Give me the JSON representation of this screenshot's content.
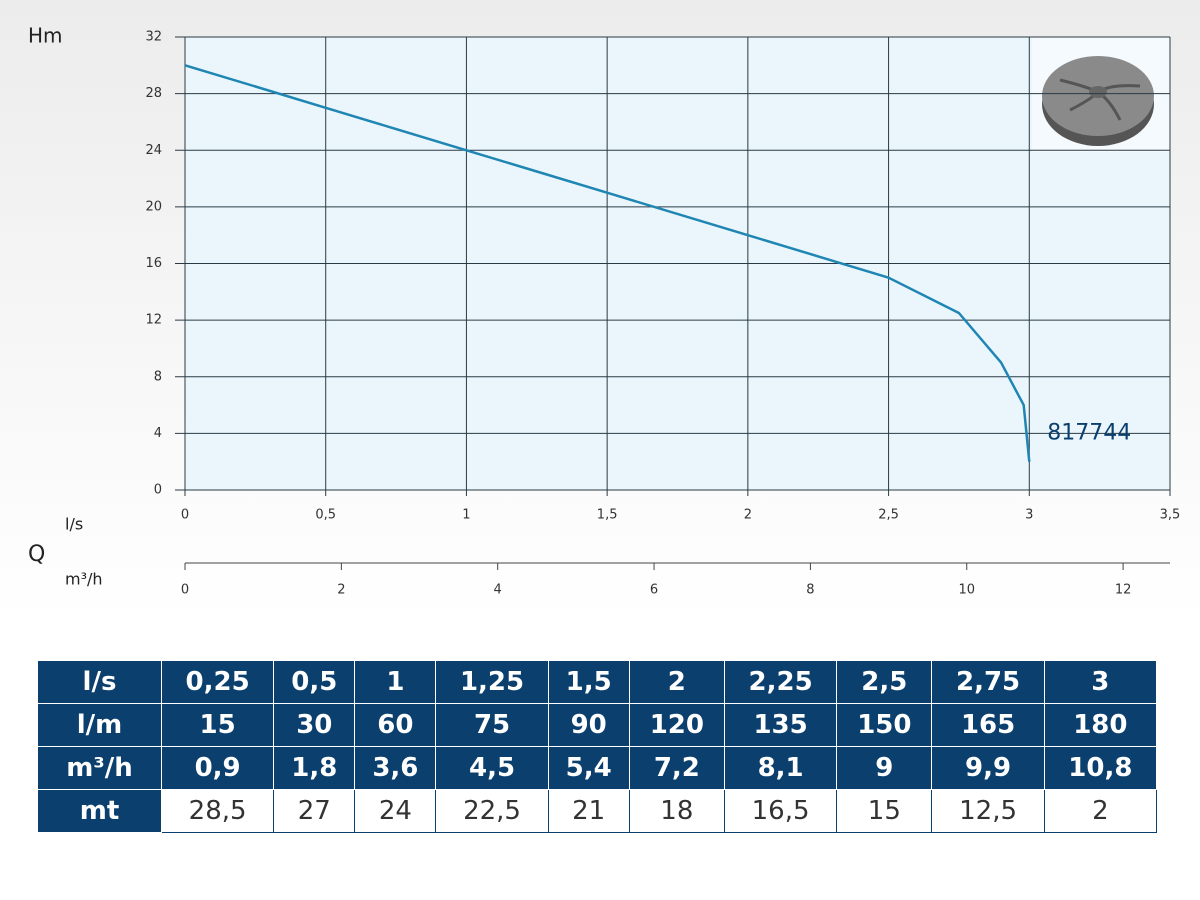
{
  "chart_data": {
    "type": "line",
    "y_label": "Hm",
    "x_label": "l/s",
    "x2_label": "m³/h",
    "q_label": "Q",
    "x": [
      0,
      0.25,
      0.5,
      1,
      1.25,
      1.5,
      2,
      2.25,
      2.5,
      2.75,
      2.9,
      2.98,
      3
    ],
    "series": [
      {
        "name": "817744",
        "color": "#1f86b3",
        "values": [
          30,
          28.5,
          27,
          24,
          22.5,
          21,
          18,
          16.5,
          15,
          12.5,
          9,
          6,
          2
        ]
      }
    ],
    "xlim": [
      0,
      3.5
    ],
    "xticks": [
      0,
      {
        "value": 0.5,
        "label": "0,5"
      },
      1,
      {
        "value": 1.5,
        "label": "1,5"
      },
      2,
      {
        "value": 2.5,
        "label": "2,5"
      },
      3,
      {
        "value": 3.5,
        "label": "3,5"
      }
    ],
    "ylim": [
      0,
      32
    ],
    "yticks": [
      0,
      4,
      8,
      12,
      16,
      20,
      24,
      28,
      32
    ],
    "x2lim": [
      0,
      12.6
    ],
    "x2ticks": [
      0,
      2,
      4,
      6,
      8,
      10,
      12
    ],
    "grid": true
  },
  "table": {
    "rows": [
      [
        "l/s",
        "0,25",
        "0,5",
        "1",
        "1,25",
        "1,5",
        "2",
        "2,25",
        "2,5",
        "2,75",
        "3"
      ],
      [
        "l/m",
        "15",
        "30",
        "60",
        "75",
        "90",
        "120",
        "135",
        "150",
        "165",
        "180"
      ],
      [
        "m³/h",
        "0,9",
        "1,8",
        "3,6",
        "4,5",
        "5,4",
        "7,2",
        "8,1",
        "9",
        "9,9",
        "10,8"
      ],
      [
        "mt",
        "28,5",
        "27",
        "24",
        "22,5",
        "21",
        "18",
        "16,5",
        "15",
        "12,5",
        "2"
      ]
    ]
  }
}
